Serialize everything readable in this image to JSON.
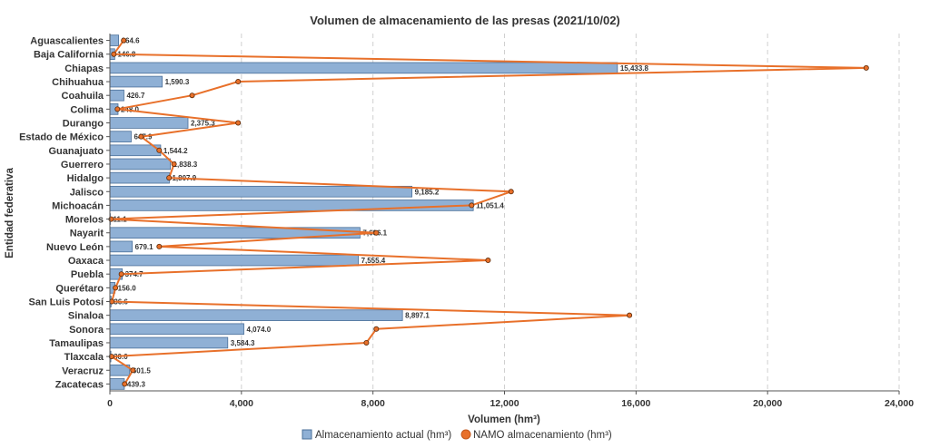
{
  "chart_data": {
    "type": "bar",
    "orientation": "horizontal",
    "title": "Volumen de almacenamiento de las presas (2021/10/02)",
    "xlabel": "Volumen (hm³)",
    "ylabel": "Entidad federativa",
    "xlim": [
      0,
      24000
    ],
    "xticks": [
      0,
      4000,
      8000,
      12000,
      16000,
      20000,
      24000
    ],
    "xtick_labels": [
      "0",
      "4,000",
      "8,000",
      "12,000",
      "16,000",
      "20,000",
      "24,000"
    ],
    "grid": "vertical dashed",
    "legend_position": "bottom-center",
    "categories": [
      "Aguascalientes",
      "Baja California",
      "Chiapas",
      "Chihuahua",
      "Coahuila",
      "Colima",
      "Durango",
      "Estado de México",
      "Guanajuato",
      "Guerrero",
      "Hidalgo",
      "Jalisco",
      "Michoacán",
      "Morelos",
      "Nayarit",
      "Nuevo León",
      "Oaxaca",
      "Puebla",
      "Querétaro",
      "San Luis Potosí",
      "Sinaloa",
      "Sonora",
      "Tamaulipas",
      "Tlaxcala",
      "Veracruz",
      "Zacatecas"
    ],
    "series": [
      {
        "name": "Almacenamiento actual (hm³)",
        "kind": "bar",
        "color": "#8fb0d5",
        "stroke": "#4a6f99",
        "values": [
          264.6,
          146.8,
          15433.8,
          1590.3,
          426.7,
          248.0,
          2375.3,
          647.9,
          1544.2,
          1838.3,
          1807.9,
          9185.2,
          11051.4,
          11.1,
          7606.1,
          679.1,
          7555.4,
          374.7,
          156.0,
          36.6,
          8897.1,
          4074.0,
          3584.3,
          30.0,
          601.5,
          439.3
        ],
        "labels": [
          "264.6",
          "146.8",
          "15,433.8",
          "1,590.3",
          "426.7",
          "248.0",
          "2,375.3",
          "647.9",
          "1,544.2",
          "1,838.3",
          "1,807.9",
          "9,185.2",
          "11,051.4",
          "11.1",
          "7,606.1",
          "679.1",
          "7,555.4",
          "374.7",
          "156.0",
          "36.6",
          "8,897.1",
          "4,074.0",
          "3,584.3",
          "30.0",
          "601.5",
          "439.3"
        ]
      },
      {
        "name": "NAMO almacenamiento (hm³)",
        "kind": "line",
        "color": "#e8702a",
        "values": [
          420,
          120,
          23000,
          3900,
          2500,
          230,
          3900,
          950,
          1500,
          1950,
          1800,
          12200,
          11000,
          40,
          8100,
          1500,
          11500,
          350,
          170,
          60,
          15800,
          8100,
          7800,
          50,
          700,
          450
        ]
      }
    ]
  }
}
